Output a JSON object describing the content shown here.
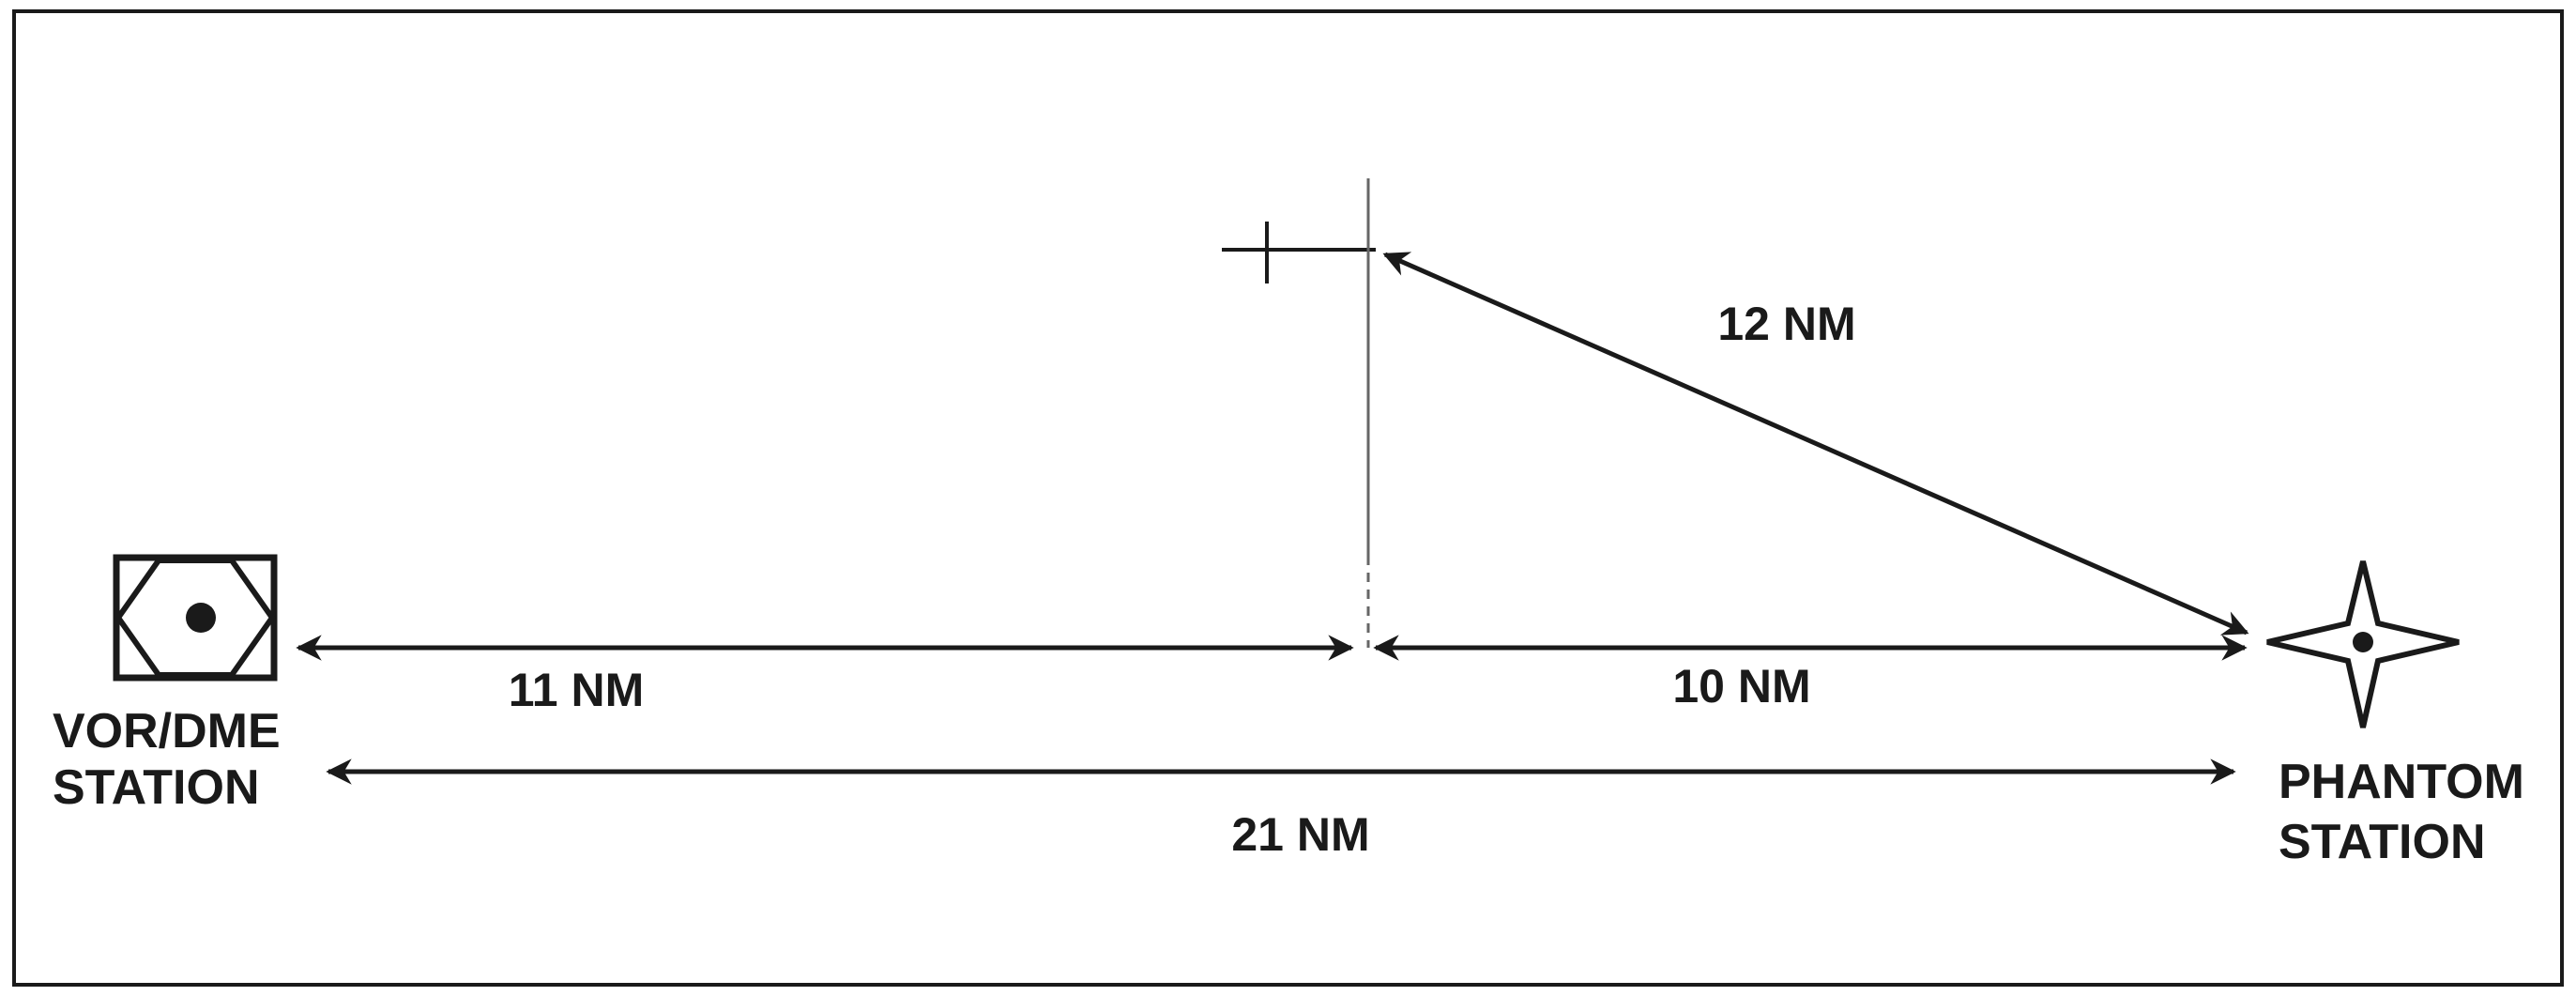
{
  "stations": {
    "vor_dme": {
      "line1": "VOR/DME",
      "line2": "STATION"
    },
    "phantom": {
      "line1": "PHANTOM",
      "line2": "STATION"
    }
  },
  "distances": {
    "vor_to_aircraft_along_track": "11 NM",
    "aircraft_to_phantom_along_track": "10 NM",
    "aircraft_to_phantom_direct": "12 NM",
    "vor_to_phantom": "21 NM"
  },
  "colors": {
    "ink": "#1a1a1a",
    "background": "#ffffff"
  }
}
